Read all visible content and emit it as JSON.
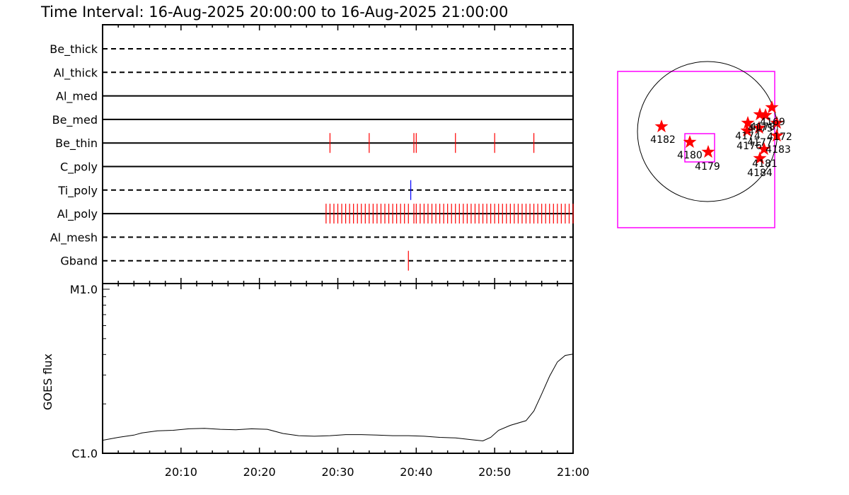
{
  "title": "Time Interval: 16-Aug-2025 20:00:00 to 16-Aug-2025 21:00:00",
  "chart_data": [
    {
      "type": "event_timeline",
      "x_range": [
        "20:00",
        "21:00"
      ],
      "filter_rows": [
        {
          "name": "Be_thick",
          "style": "dashed",
          "events": [],
          "color": "#000000"
        },
        {
          "name": "Al_thick",
          "style": "dashed",
          "events": [],
          "color": "#000000"
        },
        {
          "name": "Al_med",
          "style": "solid",
          "events": [],
          "color": "#000000"
        },
        {
          "name": "Be_med",
          "style": "solid",
          "events": [],
          "color": "#000000"
        },
        {
          "name": "Be_thin",
          "style": "solid",
          "events": [
            "20:29",
            "20:34",
            "20:39.7",
            "20:40",
            "20:45",
            "20:50",
            "20:55"
          ],
          "color": "#ff0000"
        },
        {
          "name": "C_poly",
          "style": "solid",
          "events": [],
          "color": "#000000"
        },
        {
          "name": "Ti_poly",
          "style": "dashed",
          "events": [
            "20:39.3"
          ],
          "color": "#0000ff"
        },
        {
          "name": "Al_poly",
          "style": "solid",
          "events": [
            "20:28.5",
            "20:29",
            "20:29.5",
            "20:30",
            "20:30.5",
            "20:31",
            "20:31.5",
            "20:32",
            "20:32.5",
            "20:33",
            "20:33.5",
            "20:34",
            "20:34.5",
            "20:35",
            "20:35.5",
            "20:36",
            "20:36.5",
            "20:37",
            "20:37.5",
            "20:38",
            "20:38.5",
            "20:39",
            "20:39.7",
            "20:40",
            "20:40.5",
            "20:41",
            "20:41.5",
            "20:42",
            "20:42.5",
            "20:43",
            "20:43.5",
            "20:44",
            "20:44.5",
            "20:45",
            "20:45.5",
            "20:46",
            "20:46.5",
            "20:47",
            "20:47.5",
            "20:48",
            "20:48.5",
            "20:49",
            "20:49.5",
            "20:50",
            "20:50.5",
            "20:51",
            "20:51.5",
            "20:52",
            "20:52.5",
            "20:53",
            "20:53.5",
            "20:54",
            "20:54.5",
            "20:55",
            "20:55.5",
            "20:56",
            "20:56.5",
            "20:57",
            "20:57.5",
            "20:58",
            "20:58.5",
            "20:59",
            "20:59.5",
            "21:00"
          ],
          "color": "#ff0000"
        },
        {
          "name": "Al_mesh",
          "style": "dashed",
          "events": [],
          "color": "#000000"
        },
        {
          "name": "Gband",
          "style": "dashed",
          "events": [
            "20:39"
          ],
          "color": "#ff0000"
        }
      ]
    },
    {
      "type": "line",
      "ylabel": "GOES flux",
      "y_ticks": [
        "M1.0",
        "C1.0"
      ],
      "y_scale": "log",
      "x_tick_labels": [
        "20:10",
        "20:20",
        "20:30",
        "20:40",
        "20:50",
        "21:00"
      ],
      "series": [
        {
          "color": "#000000",
          "x": [
            0,
            2,
            4,
            5,
            7,
            9,
            11,
            13,
            15,
            17,
            19,
            21,
            23,
            25,
            27,
            29,
            31,
            33,
            35,
            37,
            39,
            41,
            43,
            45,
            47,
            48.5,
            49.5,
            50.5,
            52,
            54,
            55,
            56,
            57,
            58,
            59,
            60
          ],
          "y": [
            1.2e-06,
            1.25e-06,
            1.29e-06,
            1.33e-06,
            1.37e-06,
            1.38e-06,
            1.41e-06,
            1.42e-06,
            1.4e-06,
            1.39e-06,
            1.41e-06,
            1.4e-06,
            1.32e-06,
            1.28e-06,
            1.27e-06,
            1.28e-06,
            1.3e-06,
            1.3e-06,
            1.29e-06,
            1.28e-06,
            1.28e-06,
            1.27e-06,
            1.25e-06,
            1.24e-06,
            1.21e-06,
            1.19e-06,
            1.25e-06,
            1.38e-06,
            1.48e-06,
            1.58e-06,
            1.81e-06,
            2.3e-06,
            2.95e-06,
            3.6e-06,
            3.95e-06,
            4.02e-06
          ]
        }
      ]
    },
    {
      "type": "scatter",
      "marker": "star",
      "points": [
        {
          "label": "4182",
          "marker_color": "#ff0000"
        },
        {
          "label": "4180",
          "marker_color": "#ff0000"
        },
        {
          "label": "4179",
          "marker_color": "#ff0000"
        },
        {
          "label": "4181",
          "marker_color": "#ff0000"
        },
        {
          "label": "4184",
          "marker_color": "#ff0000"
        },
        {
          "label": "4183",
          "marker_color": "#ff0000"
        },
        {
          "label": "4172",
          "marker_color": "#ff0000"
        },
        {
          "label": "4169",
          "marker_color": "#ff0000"
        },
        {
          "label": "4175",
          "marker_color": "#ff0000"
        },
        {
          "label": "4174",
          "marker_color": "#ff0000"
        },
        {
          "label": "4176",
          "marker_color": "#ff0000"
        },
        {
          "label": "4177",
          "marker_color": "#ff0000"
        },
        {
          "label": "4178",
          "marker_color": "#ff0000"
        }
      ],
      "box_color": "#ff00ff"
    }
  ]
}
